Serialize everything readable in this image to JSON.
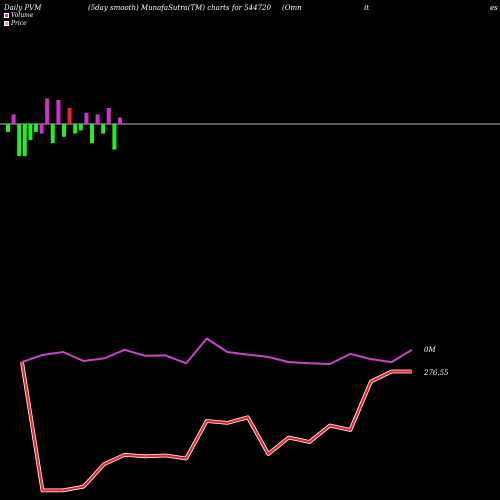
{
  "header": {
    "left": "Daily PVM",
    "middle": "(5day smooth) MunafaSutra(TM) charts for 544720",
    "right_a": "(Omn",
    "right_b": "it",
    "right_c": "es"
  },
  "legend": [
    {
      "label": "Volume",
      "color": "#cc33cc"
    },
    {
      "label": "Price",
      "color": "#e8a070"
    }
  ],
  "labels": {
    "volume_last": "0M",
    "price_last": "276.55"
  },
  "colors": {
    "background": "#000000",
    "zero_line": "#bbbbbb",
    "bar_up": "#cc33cc",
    "bar_down": "#22ee22",
    "bar_down_red": "#ee2222",
    "volume_line": "#cc44cc",
    "price_line": "#ee2222"
  },
  "chart_data": {
    "type": "line",
    "panels": [
      {
        "name": "pvm_bars",
        "type": "bar",
        "values": [
          -0.25,
          0.3,
          -1,
          -1,
          -0.5,
          -0.25,
          -0.3,
          0.8,
          -0.6,
          0.75,
          -0.4,
          0.5,
          -0.3,
          -0.2,
          0.35,
          -0.6,
          0.3,
          -0.3,
          0.5,
          -0.8,
          0.2
        ],
        "colors": [
          "down",
          "up",
          "down",
          "down",
          "down",
          "down",
          "up",
          "up",
          "down",
          "up",
          "down",
          "red",
          "down",
          "down",
          "up",
          "down",
          "up",
          "down",
          "up",
          "down",
          "up"
        ]
      }
    ],
    "series": [
      {
        "key": "volume",
        "values": [
          0.37,
          0.56,
          0.64,
          0.4,
          0.47,
          0.7,
          0.54,
          0.55,
          0.34,
          1.0,
          0.64,
          0.57,
          0.51,
          0.37,
          0.34,
          0.32,
          0.59,
          0.45,
          0.37,
          0.7
        ]
      },
      {
        "key": "price",
        "values": [
          0.37,
          -3.05,
          -3.05,
          -2.95,
          -2.35,
          -2.1,
          -2.14,
          -2.12,
          -2.2,
          -1.2,
          -1.25,
          -1.1,
          -2.08,
          -1.64,
          -1.76,
          -1.32,
          -1.44,
          -0.15,
          0.12,
          0.12
        ]
      }
    ]
  }
}
